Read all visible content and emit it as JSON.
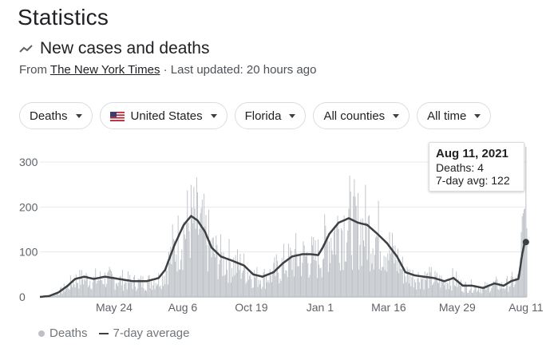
{
  "header": {
    "title": "Statistics",
    "subtitle": "New cases and deaths",
    "source_prefix": "From",
    "source_name": "The New York Times",
    "updated": "· Last updated: 20 hours ago"
  },
  "filters": {
    "metric": "Deaths",
    "country": "United States",
    "state": "Florida",
    "county": "All counties",
    "range": "All time"
  },
  "tooltip": {
    "date": "Aug 11, 2021",
    "deaths": "Deaths: 4",
    "avg": "7-day avg: 122"
  },
  "legend": {
    "bars": "Deaths",
    "line": "7-day average"
  },
  "colors": {
    "bars": "#bdc1c6",
    "line": "#3c4043",
    "grid": "#e8eaed"
  },
  "chart_data": {
    "type": "bar",
    "title": "",
    "xlabel": "",
    "ylabel": "",
    "ylim": [
      0,
      300
    ],
    "yticks": [
      0,
      100,
      200,
      300
    ],
    "x_ticks": [
      {
        "label": "May 24",
        "index": 80
      },
      {
        "label": "Aug 6",
        "index": 154
      },
      {
        "label": "Oct 19",
        "index": 228
      },
      {
        "label": "Jan 1",
        "index": 302
      },
      {
        "label": "Mar 16",
        "index": 376
      },
      {
        "label": "May 29",
        "index": 450
      },
      {
        "label": "Aug 11",
        "index": 524
      }
    ],
    "x_range": [
      0,
      525
    ],
    "series": [
      {
        "name": "Deaths",
        "kind": "bars"
      },
      {
        "name": "7-day average",
        "kind": "line",
        "anchors": [
          [
            0,
            0
          ],
          [
            10,
            2
          ],
          [
            20,
            10
          ],
          [
            30,
            25
          ],
          [
            38,
            40
          ],
          [
            48,
            45
          ],
          [
            58,
            40
          ],
          [
            70,
            45
          ],
          [
            85,
            40
          ],
          [
            100,
            35
          ],
          [
            115,
            35
          ],
          [
            128,
            42
          ],
          [
            135,
            60
          ],
          [
            145,
            115
          ],
          [
            155,
            160
          ],
          [
            163,
            180
          ],
          [
            170,
            170
          ],
          [
            178,
            145
          ],
          [
            185,
            110
          ],
          [
            195,
            90
          ],
          [
            208,
            80
          ],
          [
            220,
            70
          ],
          [
            230,
            50
          ],
          [
            240,
            45
          ],
          [
            252,
            55
          ],
          [
            262,
            75
          ],
          [
            272,
            90
          ],
          [
            283,
            95
          ],
          [
            292,
            95
          ],
          [
            300,
            93
          ],
          [
            305,
            110
          ],
          [
            312,
            140
          ],
          [
            322,
            165
          ],
          [
            333,
            175
          ],
          [
            343,
            165
          ],
          [
            353,
            160
          ],
          [
            364,
            140
          ],
          [
            374,
            120
          ],
          [
            385,
            90
          ],
          [
            394,
            55
          ],
          [
            404,
            48
          ],
          [
            414,
            45
          ],
          [
            425,
            42
          ],
          [
            436,
            35
          ],
          [
            446,
            42
          ],
          [
            456,
            25
          ],
          [
            466,
            25
          ],
          [
            478,
            20
          ],
          [
            490,
            30
          ],
          [
            500,
            25
          ],
          [
            508,
            35
          ],
          [
            516,
            40
          ],
          [
            520,
            95
          ],
          [
            523,
            125
          ],
          [
            525,
            122
          ]
        ]
      }
    ],
    "highlight": {
      "index": 524,
      "value": 4,
      "avg": 122
    }
  }
}
